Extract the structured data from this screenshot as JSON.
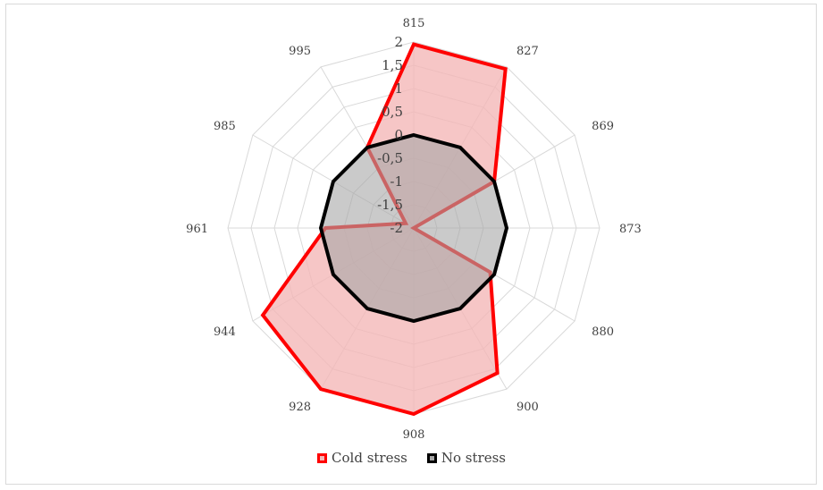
{
  "chart_data": {
    "type": "radar",
    "categories": [
      "815",
      "827",
      "869",
      "873",
      "880",
      "900",
      "908",
      "928",
      "944",
      "961",
      "985",
      "995"
    ],
    "rlim": [
      -2,
      2
    ],
    "r_ticks": [
      "-2",
      "-1,5",
      "-1",
      "-0,5",
      "0",
      "0,5",
      "1",
      "1,5",
      "2"
    ],
    "grid": true,
    "legend_position": "bottom",
    "series": [
      {
        "name": "Cold stress",
        "stroke": "#ff0000",
        "fill": "#f4b6b6",
        "fill_opacity": 0.78,
        "values": [
          1.95,
          1.95,
          0,
          -2,
          -0.1,
          1.6,
          2,
          2,
          1.75,
          -0.1,
          -1.8,
          0
        ]
      },
      {
        "name": "No stress",
        "stroke": "#000000",
        "fill": "#a6a6a6",
        "fill_opacity": 0.6,
        "values": [
          0,
          0,
          0,
          0,
          0,
          0,
          0,
          0,
          0,
          0,
          0,
          0
        ]
      }
    ]
  }
}
